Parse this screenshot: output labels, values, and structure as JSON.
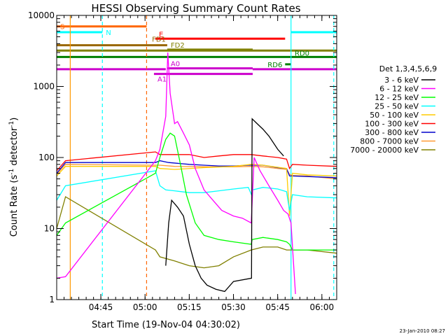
{
  "chart_data": {
    "type": "line",
    "title": "HESSI Observing Summary Count Rates",
    "xlabel": "Start Time (19-Nov-04 04:30:02)",
    "ylabel_parts": [
      "Count Rate (s",
      "-1",
      " detector",
      "-1",
      ")"
    ],
    "yscale": "log",
    "ylim": [
      1,
      10000
    ],
    "xlim_minutes": [
      0,
      95
    ],
    "x_ticks": [
      {
        "label": "04:45",
        "t": 14.97
      },
      {
        "label": "05:00",
        "t": 29.97
      },
      {
        "label": "05:15",
        "t": 44.97
      },
      {
        "label": "05:30",
        "t": 59.97
      },
      {
        "label": "05:45",
        "t": 74.97
      },
      {
        "label": "06:00",
        "t": 89.97
      }
    ],
    "y_ticks": [
      {
        "label": "1",
        "v": 1
      },
      {
        "label": "10",
        "v": 10
      },
      {
        "label": "100",
        "v": 100
      },
      {
        "label": "1000",
        "v": 1000
      },
      {
        "label": "10000",
        "v": 10000
      }
    ],
    "legend_title": "Det 1,3,4,5,6,9",
    "legend_placement": "right",
    "series": [
      {
        "name": "3 - 6 keV",
        "color": "#000000",
        "points": [
          [
            37,
            3
          ],
          [
            38,
            12
          ],
          [
            39,
            25
          ],
          [
            41,
            20
          ],
          [
            43,
            15
          ],
          [
            45,
            6
          ],
          [
            47,
            3
          ],
          [
            49,
            2
          ],
          [
            51,
            1.6
          ],
          [
            54,
            1.4
          ],
          [
            57,
            1.3
          ],
          [
            60,
            1.8
          ],
          [
            66.1,
            2
          ],
          [
            66.3,
            350
          ],
          [
            68,
            300
          ],
          [
            70,
            250
          ],
          [
            72,
            200
          ],
          [
            75,
            130
          ],
          [
            77,
            105
          ]
        ]
      },
      {
        "name": "6 - 12 keV",
        "color": "#ff00ff",
        "points": [
          [
            0,
            2
          ],
          [
            3,
            2.1
          ],
          [
            33.5,
            90
          ],
          [
            35,
            130
          ],
          [
            37,
            380
          ],
          [
            37.7,
            3000
          ],
          [
            38.5,
            800
          ],
          [
            40,
            300
          ],
          [
            41,
            320
          ],
          [
            43,
            220
          ],
          [
            45,
            150
          ],
          [
            47,
            70
          ],
          [
            50,
            35
          ],
          [
            53,
            25
          ],
          [
            56,
            18
          ],
          [
            60,
            15
          ],
          [
            63,
            14
          ],
          [
            66,
            12
          ],
          [
            67,
            100
          ],
          [
            69,
            65
          ],
          [
            72,
            40
          ],
          [
            75,
            25
          ],
          [
            77,
            18
          ],
          [
            78.5,
            16
          ],
          [
            79.5,
            12
          ],
          [
            81,
            1.2
          ]
        ]
      },
      {
        "name": "12 - 25 keV",
        "color": "#00ff00",
        "points": [
          [
            0,
            8
          ],
          [
            3,
            12
          ],
          [
            33.5,
            60
          ],
          [
            35,
            100
          ],
          [
            37,
            180
          ],
          [
            38.5,
            220
          ],
          [
            40,
            200
          ],
          [
            42,
            80
          ],
          [
            44,
            30
          ],
          [
            47,
            12
          ],
          [
            50,
            8
          ],
          [
            55,
            7
          ],
          [
            60,
            6.5
          ],
          [
            66,
            6
          ],
          [
            66.3,
            7
          ],
          [
            70,
            7.5
          ],
          [
            75,
            7
          ],
          [
            78,
            6.5
          ],
          [
            79,
            6
          ],
          [
            80,
            5
          ],
          [
            85,
            5
          ],
          [
            95,
            5
          ]
        ]
      },
      {
        "name": "25 - 50 keV",
        "color": "#00ffff",
        "points": [
          [
            0,
            25
          ],
          [
            3,
            40
          ],
          [
            33.5,
            65
          ],
          [
            35,
            40
          ],
          [
            37,
            35
          ],
          [
            40,
            34
          ],
          [
            45,
            32
          ],
          [
            50,
            32
          ],
          [
            55,
            34
          ],
          [
            60,
            36
          ],
          [
            65,
            38
          ],
          [
            66.1,
            30
          ],
          [
            66.5,
            35
          ],
          [
            70,
            38
          ],
          [
            75,
            36
          ],
          [
            78,
            33
          ],
          [
            79,
            18
          ],
          [
            80,
            30
          ],
          [
            85,
            28
          ],
          [
            95,
            27
          ]
        ]
      },
      {
        "name": "50 - 100 keV",
        "color": "#ffcc00",
        "points": [
          [
            0,
            55
          ],
          [
            3,
            75
          ],
          [
            33.5,
            75
          ],
          [
            35,
            70
          ],
          [
            40,
            68
          ],
          [
            50,
            72
          ],
          [
            60,
            75
          ],
          [
            66,
            80
          ],
          [
            70,
            78
          ],
          [
            78,
            70
          ],
          [
            79,
            15
          ],
          [
            80,
            60
          ],
          [
            85,
            57
          ],
          [
            95,
            55
          ]
        ]
      },
      {
        "name": "100 - 300 keV",
        "color": "#ff0000",
        "points": [
          [
            0,
            65
          ],
          [
            3,
            90
          ],
          [
            33.5,
            120
          ],
          [
            35,
            110
          ],
          [
            38,
            110
          ],
          [
            45,
            110
          ],
          [
            50,
            100
          ],
          [
            55,
            105
          ],
          [
            60,
            110
          ],
          [
            66,
            110
          ],
          [
            70,
            105
          ],
          [
            75,
            100
          ],
          [
            78,
            95
          ],
          [
            79,
            70
          ],
          [
            80,
            80
          ],
          [
            85,
            78
          ],
          [
            95,
            75
          ]
        ]
      },
      {
        "name": "300 - 800 keV",
        "color": "#0000cc",
        "points": [
          [
            0,
            60
          ],
          [
            3,
            85
          ],
          [
            33.5,
            85
          ],
          [
            35,
            90
          ],
          [
            38,
            85
          ],
          [
            45,
            80
          ],
          [
            50,
            78
          ],
          [
            55,
            76
          ],
          [
            60,
            76
          ],
          [
            65,
            78
          ],
          [
            70,
            78
          ],
          [
            75,
            72
          ],
          [
            78,
            70
          ],
          [
            79,
            55
          ],
          [
            80,
            55
          ],
          [
            85,
            54
          ],
          [
            95,
            52
          ]
        ]
      },
      {
        "name": "800 - 7000 keV",
        "color": "#ff9933",
        "points": [
          [
            0,
            58
          ],
          [
            3,
            80
          ],
          [
            33.5,
            78
          ],
          [
            35,
            78
          ],
          [
            40,
            75
          ],
          [
            50,
            74
          ],
          [
            60,
            74
          ],
          [
            66,
            75
          ],
          [
            70,
            74
          ],
          [
            75,
            70
          ],
          [
            78,
            68
          ],
          [
            79,
            58
          ],
          [
            80,
            56
          ],
          [
            85,
            55
          ],
          [
            95,
            50
          ]
        ]
      },
      {
        "name": "7000 - 20000 keV",
        "color": "#808000",
        "points": [
          [
            0,
            10
          ],
          [
            3,
            28
          ],
          [
            33.5,
            5
          ],
          [
            35,
            4
          ],
          [
            40,
            3.5
          ],
          [
            45,
            3
          ],
          [
            50,
            2.8
          ],
          [
            55,
            3
          ],
          [
            60,
            4
          ],
          [
            66,
            5
          ],
          [
            70,
            5.5
          ],
          [
            75,
            5.5
          ],
          [
            78,
            5
          ],
          [
            80,
            5
          ],
          [
            85,
            5
          ],
          [
            95,
            4.5
          ]
        ]
      }
    ],
    "flags": [
      {
        "label": "S",
        "color": "#ff6600",
        "t0": 0,
        "t1": 30.5,
        "value": 7000,
        "label_at": "start"
      },
      {
        "label": "N",
        "color": "#00ffff",
        "t0": 0,
        "t1": 15.5,
        "value": 5800,
        "label_at": "end"
      },
      {
        "label": "N",
        "color": "#00ffff",
        "t0": 79.5,
        "t1": 95,
        "value": 5800,
        "label_at": "none"
      },
      {
        "label": "E",
        "color": "#ff0000",
        "t0": 33.5,
        "t1": 77.5,
        "value": 4700,
        "label_at": "above-start"
      },
      {
        "label": "FD1",
        "color": "#996600",
        "t0": 0,
        "t1": 37.5,
        "value": 3800,
        "label_at": "above-end"
      },
      {
        "label": "FD2",
        "color": "#808000",
        "t0": 37.5,
        "t1": 66.5,
        "value": 3300,
        "label_at": "above-start"
      },
      {
        "label": "FD",
        "color": "#808000",
        "t0": 0,
        "t1": 95,
        "value": 3200,
        "label_at": "none"
      },
      {
        "label": "RD0",
        "color": "#008000",
        "t0": 0,
        "t1": 95,
        "value": 2600,
        "label_at": "end-above"
      },
      {
        "label": "RD6",
        "color": "#008000",
        "t0": 77.5,
        "t1": 79.5,
        "value": 2050,
        "label_at": "left"
      },
      {
        "label": "A0",
        "color": "#cc00cc",
        "t0": 37.5,
        "t1": 66.5,
        "value": 1800,
        "label_at": "above-start"
      },
      {
        "label": "A0",
        "color": "#cc00cc",
        "t0": 0,
        "t1": 37,
        "value": 1750,
        "label_at": "none"
      },
      {
        "label": "A0",
        "color": "#cc00cc",
        "t0": 66.5,
        "t1": 95,
        "value": 1750,
        "label_at": "none"
      },
      {
        "label": "A1",
        "color": "#cc00cc",
        "t0": 33,
        "t1": 66.5,
        "value": 1500,
        "label_at": "below-start"
      }
    ],
    "vlines": [
      {
        "t": 4.6,
        "color": "#ff9900",
        "style": "solid"
      },
      {
        "t": 15.5,
        "color": "#00ffff",
        "style": "dashed"
      },
      {
        "t": 30.5,
        "color": "#ff6600",
        "style": "dashed"
      },
      {
        "t": 79.5,
        "color": "#00ffff",
        "style": "solid"
      },
      {
        "t": 94,
        "color": "#00ffff",
        "style": "dashed"
      }
    ]
  },
  "footer": {
    "timestamp": "23-Jan-2010 08:27"
  }
}
